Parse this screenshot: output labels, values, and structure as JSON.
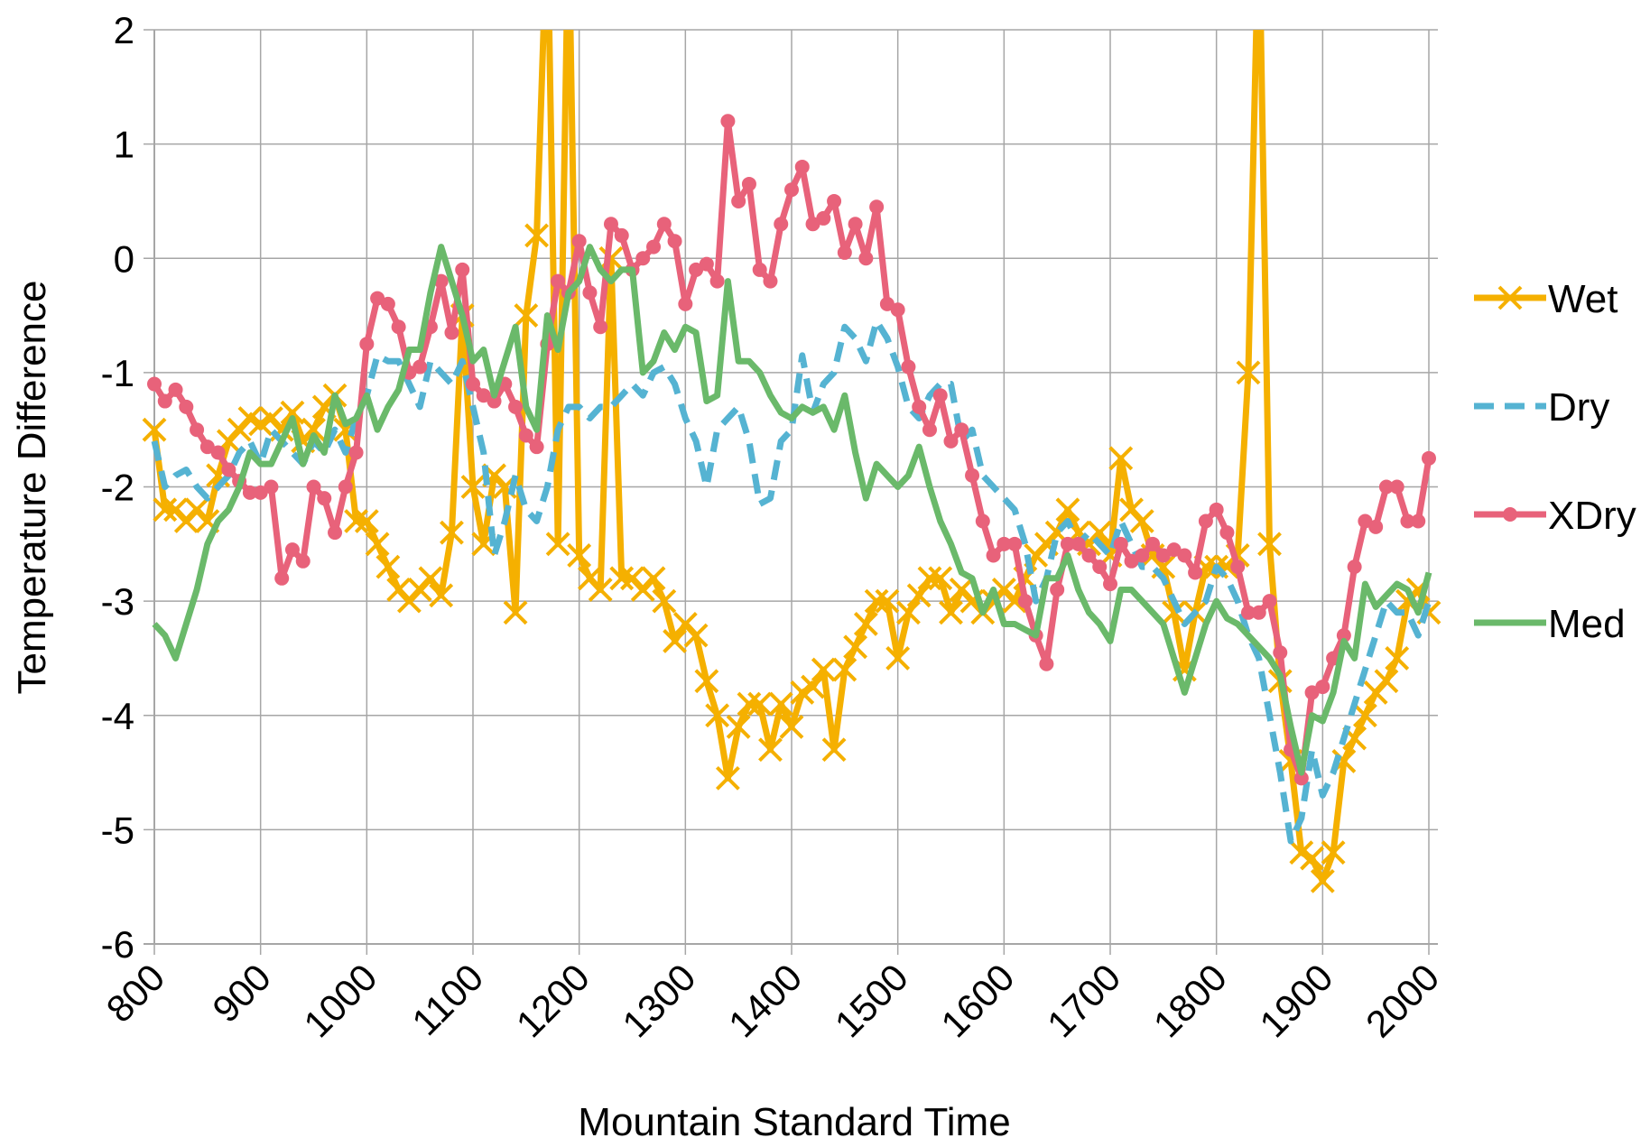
{
  "chart_data": {
    "type": "line",
    "xlabel": "Mountain Standard Time",
    "ylabel": "Temperature Difference",
    "x": [
      800,
      810,
      820,
      830,
      840,
      850,
      860,
      870,
      880,
      890,
      900,
      910,
      920,
      930,
      940,
      950,
      960,
      970,
      980,
      990,
      1000,
      1010,
      1020,
      1030,
      1040,
      1050,
      1060,
      1070,
      1080,
      1090,
      1100,
      1110,
      1120,
      1130,
      1140,
      1150,
      1160,
      1170,
      1180,
      1190,
      1200,
      1210,
      1220,
      1230,
      1240,
      1250,
      1260,
      1270,
      1280,
      1290,
      1300,
      1310,
      1320,
      1330,
      1340,
      1350,
      1360,
      1370,
      1380,
      1390,
      1400,
      1410,
      1420,
      1430,
      1440,
      1450,
      1460,
      1470,
      1480,
      1490,
      1500,
      1510,
      1520,
      1530,
      1540,
      1550,
      1560,
      1570,
      1580,
      1590,
      1600,
      1610,
      1620,
      1630,
      1640,
      1650,
      1660,
      1670,
      1680,
      1690,
      1700,
      1710,
      1720,
      1730,
      1740,
      1750,
      1760,
      1770,
      1780,
      1790,
      1800,
      1810,
      1820,
      1830,
      1840,
      1850,
      1860,
      1870,
      1880,
      1890,
      1900,
      1910,
      1920,
      1930,
      1940,
      1950,
      1960,
      1970,
      1980,
      1990,
      2000
    ],
    "series": [
      {
        "name": "Wet",
        "color": "#f5b000",
        "marker": "x",
        "dashed": false,
        "values": [
          -1.5,
          -2.2,
          -2.2,
          -2.3,
          -2.2,
          -2.3,
          -1.9,
          -1.6,
          -1.5,
          -1.4,
          -1.45,
          -1.4,
          -1.5,
          -1.35,
          -1.6,
          -1.5,
          -1.3,
          -1.2,
          -1.5,
          -2.3,
          -2.3,
          -2.5,
          -2.7,
          -2.9,
          -3.0,
          -2.9,
          -2.8,
          -2.95,
          -2.4,
          -0.5,
          -2.0,
          -2.5,
          -1.9,
          -2.0,
          -3.1,
          -0.5,
          0.2,
          3,
          -2.5,
          3,
          -2.6,
          -2.8,
          -2.9,
          0,
          -2.8,
          -2.8,
          -2.9,
          -2.8,
          -3.0,
          -3.35,
          -3.2,
          -3.3,
          -3.7,
          -4.0,
          -4.55,
          -4.1,
          -3.9,
          -3.9,
          -4.3,
          -3.9,
          -4.1,
          -3.8,
          -3.75,
          -3.6,
          -4.3,
          -3.6,
          -3.4,
          -3.2,
          -3.0,
          -3.0,
          -3.5,
          -3.1,
          -2.95,
          -2.8,
          -2.8,
          -3.1,
          -2.9,
          -3.0,
          -3.1,
          -3.0,
          -2.9,
          -3.0,
          -2.8,
          -2.6,
          -2.5,
          -2.4,
          -2.2,
          -2.4,
          -2.5,
          -2.4,
          -2.6,
          -1.75,
          -2.2,
          -2.3,
          -2.6,
          -2.7,
          -3.1,
          -3.6,
          -3.1,
          -2.7,
          -2.7,
          -2.7,
          -2.6,
          -1.0,
          3,
          -2.5,
          -3.7,
          -4.4,
          -5.2,
          -5.25,
          -5.45,
          -5.2,
          -4.4,
          -4.2,
          -4.0,
          -3.8,
          -3.7,
          -3.5,
          -3.0,
          -2.9,
          -3.1
        ]
      },
      {
        "name": "Dry",
        "color": "#55b3d2",
        "marker": "none",
        "dashed": true,
        "values": [
          -1.6,
          -2.0,
          -1.9,
          -1.85,
          -2.0,
          -2.1,
          -2.0,
          -1.9,
          -1.7,
          -1.6,
          -1.8,
          -1.5,
          -1.6,
          -1.7,
          -1.8,
          -1.6,
          -1.7,
          -1.5,
          -1.7,
          -1.4,
          -1.2,
          -0.85,
          -0.9,
          -0.9,
          -1.1,
          -1.3,
          -0.9,
          -1.0,
          -1.1,
          -0.9,
          -1.3,
          -1.7,
          -2.6,
          -2.3,
          -1.9,
          -2.2,
          -2.3,
          -2.0,
          -1.5,
          -1.3,
          -1.3,
          -1.4,
          -1.3,
          -1.3,
          -1.2,
          -1.1,
          -1.2,
          -1.0,
          -0.95,
          -1.1,
          -1.4,
          -1.6,
          -2.0,
          -1.5,
          -1.4,
          -1.3,
          -1.6,
          -2.15,
          -2.1,
          -1.6,
          -1.5,
          -0.85,
          -1.35,
          -1.1,
          -1.0,
          -0.6,
          -0.7,
          -0.9,
          -0.55,
          -0.7,
          -0.95,
          -1.3,
          -1.4,
          -1.2,
          -1.1,
          -1.1,
          -1.6,
          -1.5,
          -1.9,
          -2.0,
          -2.1,
          -2.2,
          -2.5,
          -3.0,
          -2.8,
          -2.4,
          -2.3,
          -2.5,
          -2.4,
          -2.5,
          -2.6,
          -2.3,
          -2.5,
          -2.7,
          -2.7,
          -2.8,
          -3.0,
          -3.2,
          -3.1,
          -3.0,
          -2.7,
          -2.8,
          -3.0,
          -3.3,
          -3.5,
          -4.0,
          -4.5,
          -5.1,
          -4.9,
          -4.3,
          -4.7,
          -4.5,
          -4.2,
          -3.9,
          -3.6,
          -3.3,
          -3.0,
          -3.1,
          -3.1,
          -3.3,
          -3.0
        ]
      },
      {
        "name": "XDry",
        "color": "#e8627a",
        "marker": "circle",
        "dashed": false,
        "values": [
          -1.1,
          -1.25,
          -1.15,
          -1.3,
          -1.5,
          -1.65,
          -1.7,
          -1.85,
          -1.95,
          -2.05,
          -2.05,
          -2.0,
          -2.8,
          -2.55,
          -2.65,
          -2.0,
          -2.1,
          -2.4,
          -2.0,
          -1.7,
          -0.75,
          -0.35,
          -0.4,
          -0.6,
          -1.0,
          -0.95,
          -0.6,
          -0.2,
          -0.65,
          -0.1,
          -1.1,
          -1.2,
          -1.25,
          -1.1,
          -1.3,
          -1.55,
          -1.65,
          -0.75,
          -0.2,
          -0.3,
          0.15,
          -0.3,
          -0.6,
          0.3,
          0.2,
          -0.1,
          0.0,
          0.1,
          0.3,
          0.15,
          -0.4,
          -0.1,
          -0.05,
          -0.2,
          1.2,
          0.5,
          0.65,
          -0.1,
          -0.2,
          0.3,
          0.6,
          0.8,
          0.3,
          0.35,
          0.5,
          0.05,
          0.3,
          0.0,
          0.45,
          -0.4,
          -0.45,
          -0.95,
          -1.3,
          -1.5,
          -1.2,
          -1.6,
          -1.5,
          -1.9,
          -2.3,
          -2.6,
          -2.5,
          -2.5,
          -3.0,
          -3.3,
          -3.55,
          -2.9,
          -2.5,
          -2.5,
          -2.6,
          -2.7,
          -2.85,
          -2.5,
          -2.65,
          -2.6,
          -2.5,
          -2.6,
          -2.55,
          -2.6,
          -2.75,
          -2.3,
          -2.2,
          -2.4,
          -2.7,
          -3.1,
          -3.1,
          -3.0,
          -3.45,
          -4.3,
          -4.55,
          -3.8,
          -3.75,
          -3.5,
          -3.3,
          -2.7,
          -2.3,
          -2.35,
          -2.0,
          -2.0,
          -2.3,
          -2.3,
          -1.75
        ]
      },
      {
        "name": "Med",
        "color": "#6ab96a",
        "marker": "none",
        "dashed": false,
        "values": [
          -3.2,
          -3.3,
          -3.5,
          -3.2,
          -2.9,
          -2.5,
          -2.3,
          -2.2,
          -2.0,
          -1.7,
          -1.8,
          -1.8,
          -1.6,
          -1.4,
          -1.8,
          -1.55,
          -1.7,
          -1.2,
          -1.45,
          -1.4,
          -1.2,
          -1.5,
          -1.3,
          -1.15,
          -0.8,
          -0.8,
          -0.3,
          0.1,
          -0.2,
          -0.5,
          -0.9,
          -0.8,
          -1.2,
          -0.9,
          -0.6,
          -1.3,
          -1.5,
          -0.5,
          -0.8,
          -0.3,
          -0.2,
          0.1,
          -0.1,
          -0.2,
          -0.1,
          -0.1,
          -1.0,
          -0.9,
          -0.65,
          -0.8,
          -0.6,
          -0.65,
          -1.25,
          -1.2,
          -0.2,
          -0.9,
          -0.9,
          -1.0,
          -1.2,
          -1.35,
          -1.4,
          -1.3,
          -1.35,
          -1.3,
          -1.5,
          -1.2,
          -1.7,
          -2.1,
          -1.8,
          -1.9,
          -2.0,
          -1.9,
          -1.65,
          -2.0,
          -2.3,
          -2.5,
          -2.75,
          -2.8,
          -3.1,
          -2.9,
          -3.2,
          -3.2,
          -3.25,
          -3.3,
          -2.8,
          -2.8,
          -2.6,
          -2.9,
          -3.1,
          -3.2,
          -3.35,
          -2.9,
          -2.9,
          -3.0,
          -3.1,
          -3.2,
          -3.5,
          -3.8,
          -3.5,
          -3.2,
          -3.0,
          -3.15,
          -3.2,
          -3.3,
          -3.4,
          -3.5,
          -3.65,
          -4.1,
          -4.5,
          -4.0,
          -4.05,
          -3.8,
          -3.35,
          -3.5,
          -2.85,
          -3.05,
          -2.95,
          -2.85,
          -2.9,
          -3.1,
          -2.75
        ]
      }
    ],
    "xlim": [
      800,
      2000
    ],
    "ylim": [
      -6,
      2
    ],
    "xticks": [
      800,
      900,
      1000,
      1100,
      1200,
      1300,
      1400,
      1500,
      1600,
      1700,
      1800,
      1900,
      2000
    ],
    "yticks": [
      -6,
      -5,
      -4,
      -3,
      -2,
      -1,
      0,
      1,
      2
    ],
    "grid": true,
    "legend": "right"
  }
}
